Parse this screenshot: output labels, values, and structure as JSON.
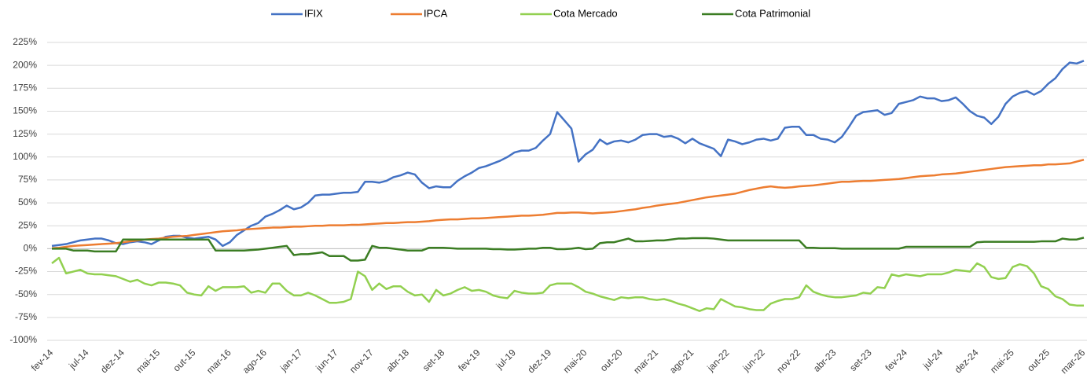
{
  "chart_data": {
    "type": "line",
    "categories": [
      "fev-14",
      null,
      null,
      null,
      null,
      "jul-14",
      null,
      null,
      null,
      null,
      "dez-14",
      null,
      null,
      null,
      null,
      "mai-15",
      null,
      null,
      null,
      null,
      "out-15",
      null,
      null,
      null,
      null,
      "mar-16",
      null,
      null,
      null,
      null,
      "ago-16",
      null,
      null,
      null,
      null,
      "jan-17",
      null,
      null,
      null,
      null,
      "jun-17",
      null,
      null,
      null,
      null,
      "nov-17",
      null,
      null,
      null,
      null,
      "abr-18",
      null,
      null,
      null,
      null,
      "set-18",
      null,
      null,
      null,
      null,
      "fev-19",
      null,
      null,
      null,
      null,
      "jul-19",
      null,
      null,
      null,
      null,
      "dez-19",
      null,
      null,
      null,
      null,
      "mai-20",
      null,
      null,
      null,
      null,
      "out-20",
      null,
      null,
      null,
      null,
      "mar-21",
      null,
      null,
      null,
      null,
      "ago-21",
      null,
      null,
      null,
      null,
      "jan-22",
      null,
      null,
      null,
      null,
      "jun-22",
      null,
      null,
      null,
      null,
      "nov-22",
      null,
      null,
      null,
      null,
      "abr-23",
      null,
      null,
      null,
      null,
      "set-23",
      null,
      null,
      null,
      null,
      "fev-24",
      null,
      null,
      null,
      null,
      "jul-24",
      null,
      null,
      null,
      null,
      "dez-24",
      null,
      null,
      null,
      null,
      "mai-25",
      null,
      null,
      null,
      null,
      "out-25",
      null,
      null,
      null,
      null,
      "mar-26"
    ],
    "series": [
      {
        "name": "IFIX",
        "color": "#4472c4",
        "values": [
          3,
          4,
          5,
          7,
          9,
          10,
          11,
          11,
          9,
          6,
          5,
          7,
          8,
          7,
          5,
          9,
          13,
          14,
          14,
          12,
          11,
          12,
          13,
          10,
          3,
          7,
          15,
          20,
          25,
          28,
          35,
          38,
          42,
          47,
          43,
          45,
          50,
          58,
          59,
          59,
          60,
          61,
          61,
          62,
          73,
          73,
          72,
          74,
          78,
          80,
          83,
          81,
          72,
          66,
          68,
          67,
          67,
          74,
          79,
          83,
          88,
          90,
          93,
          96,
          100,
          105,
          107,
          107,
          110,
          118,
          125,
          149,
          140,
          131,
          95,
          103,
          108,
          119,
          114,
          117,
          118,
          116,
          119,
          124,
          125,
          125,
          122,
          123,
          120,
          115,
          120,
          115,
          112,
          109,
          101,
          119,
          117,
          114,
          116,
          119,
          120,
          118,
          120,
          132,
          133,
          133,
          124,
          124,
          120,
          119,
          116,
          122,
          133,
          145,
          149,
          150,
          151,
          146,
          148,
          158,
          160,
          162,
          166,
          164,
          164,
          161,
          162,
          165,
          158,
          150,
          145,
          143,
          136,
          144,
          158,
          166,
          170,
          172,
          168,
          172,
          180,
          186,
          196,
          203,
          202,
          205
        ]
      },
      {
        "name": "IPCA",
        "color": "#ed7d31",
        "values": [
          0.5,
          1,
          2,
          3,
          3.5,
          4,
          4.5,
          5,
          5.5,
          6,
          7,
          8,
          9,
          10,
          10.5,
          11,
          12,
          13,
          13.5,
          14,
          15,
          16,
          17,
          18,
          19,
          19.5,
          20,
          21,
          21.5,
          22,
          22.5,
          23,
          23,
          23.5,
          24,
          24,
          24.5,
          25,
          25,
          25.5,
          25.5,
          25.5,
          26,
          26,
          26.5,
          27,
          27.5,
          28,
          28,
          28.5,
          29,
          29,
          29.5,
          30,
          31,
          31.5,
          32,
          32,
          32.5,
          33,
          33,
          33.5,
          34,
          34.5,
          35,
          35.5,
          36,
          36,
          36.5,
          37,
          38,
          39,
          39,
          39.5,
          39.5,
          39,
          38.5,
          39,
          39.5,
          40,
          41,
          42,
          43,
          44.5,
          45.5,
          47,
          48,
          49,
          50,
          51.5,
          53,
          54.5,
          56,
          57,
          58,
          59,
          60,
          62,
          64,
          65.5,
          67,
          68,
          67,
          66.5,
          67,
          68,
          68.5,
          69,
          70,
          71,
          72,
          73,
          73,
          73.5,
          74,
          74,
          74.5,
          75,
          75.5,
          76,
          77,
          78,
          79,
          79.5,
          80,
          81,
          81.5,
          82,
          83,
          84,
          85,
          86,
          87,
          88,
          89,
          89.5,
          90,
          90.5,
          91,
          91,
          92,
          92,
          92.5,
          93,
          95,
          97
        ]
      },
      {
        "name": "Cota Mercado",
        "color": "#92d050",
        "values": [
          -16,
          -10,
          -27,
          -25,
          -23,
          -27,
          -28,
          -28,
          -29,
          -30,
          -33,
          -36,
          -34,
          -38,
          -40,
          -37,
          -37,
          -38,
          -40,
          -48,
          -50,
          -51,
          -41,
          -46,
          -42,
          -42,
          -42,
          -41,
          -48,
          -46,
          -48,
          -38,
          -38,
          -46,
          -51,
          -51,
          -48,
          -51,
          -55,
          -59,
          -59,
          -58,
          -55,
          -25,
          -30,
          -45,
          -38,
          -44,
          -41,
          -41,
          -47,
          -51,
          -50,
          -58,
          -45,
          -51,
          -49,
          -45,
          -42,
          -46,
          -45,
          -47,
          -51,
          -53,
          -54,
          -46,
          -48,
          -49,
          -49,
          -48,
          -40,
          -38,
          -38,
          -38,
          -42,
          -47,
          -49,
          -52,
          -54,
          -56,
          -53,
          -54,
          -53,
          -53,
          -55,
          -56,
          -55,
          -57,
          -60,
          -62,
          -65,
          -68,
          -65,
          -66,
          -55,
          -59,
          -63,
          -64,
          -66,
          -67,
          -67,
          -60,
          -57,
          -55,
          -55,
          -53,
          -40,
          -47,
          -50,
          -52,
          -53,
          -53,
          -52,
          -51,
          -48,
          -49,
          -42,
          -43,
          -28,
          -30,
          -28,
          -29,
          -30,
          -28,
          -28,
          -28,
          -26,
          -23,
          -24,
          -25,
          -16,
          -20,
          -31,
          -33,
          -32,
          -20,
          -17,
          -19,
          -27,
          -41,
          -44,
          -52,
          -55,
          -61,
          -62,
          -62
        ]
      },
      {
        "name": "Cota Patrimonial",
        "color": "#3b7d23",
        "values": [
          0,
          0,
          0,
          -2,
          -2,
          -2,
          -3,
          -3,
          -3,
          -3,
          10,
          10,
          10,
          10,
          10,
          10,
          10,
          10,
          10,
          10,
          10,
          10,
          10,
          -2,
          -2,
          -2,
          -2,
          -2,
          -1.5,
          -1,
          0,
          1,
          2,
          3,
          -7,
          -6,
          -6,
          -5,
          -4,
          -8,
          -8,
          -8,
          -13,
          -13,
          -12,
          3,
          1,
          1,
          0,
          -1,
          -2,
          -2,
          -2,
          1,
          1,
          1,
          0.5,
          0,
          0,
          0,
          0,
          0,
          -0.5,
          -0.5,
          -1,
          -1,
          -0.5,
          0,
          0,
          1,
          1,
          -0.5,
          -0.5,
          0,
          1,
          -0.5,
          0,
          6,
          7,
          7,
          9,
          11,
          8,
          8,
          8.5,
          9,
          9,
          10,
          11,
          11,
          11.5,
          11.5,
          11.5,
          11,
          10,
          9,
          9,
          9,
          9,
          9,
          9,
          9,
          9,
          9,
          9,
          9,
          1,
          1,
          0.5,
          0.5,
          0.5,
          0,
          0,
          0,
          0,
          0,
          0,
          0,
          0,
          0,
          2,
          2,
          2,
          2,
          2,
          2,
          2,
          2,
          2,
          2,
          7,
          7.5,
          7.5,
          7.5,
          7.5,
          7.5,
          7.5,
          7.5,
          7.5,
          8,
          8,
          8,
          11,
          10,
          10,
          12
        ]
      }
    ],
    "ylim": [
      -100,
      225
    ],
    "yticks": [
      {
        "value": -100,
        "label": "-100%"
      },
      {
        "value": -75,
        "label": "-75%"
      },
      {
        "value": -50,
        "label": "-50%"
      },
      {
        "value": -25,
        "label": "-25%"
      },
      {
        "value": 0,
        "label": "0%"
      },
      {
        "value": 25,
        "label": "25%"
      },
      {
        "value": 50,
        "label": "50%"
      },
      {
        "value": 75,
        "label": "75%"
      },
      {
        "value": 100,
        "label": "100%"
      },
      {
        "value": 125,
        "label": "125%"
      },
      {
        "value": 150,
        "label": "150%"
      },
      {
        "value": 175,
        "label": "175%"
      },
      {
        "value": 200,
        "label": "200%"
      },
      {
        "value": 225,
        "label": "225%"
      }
    ],
    "grid": true,
    "legend": "top"
  }
}
